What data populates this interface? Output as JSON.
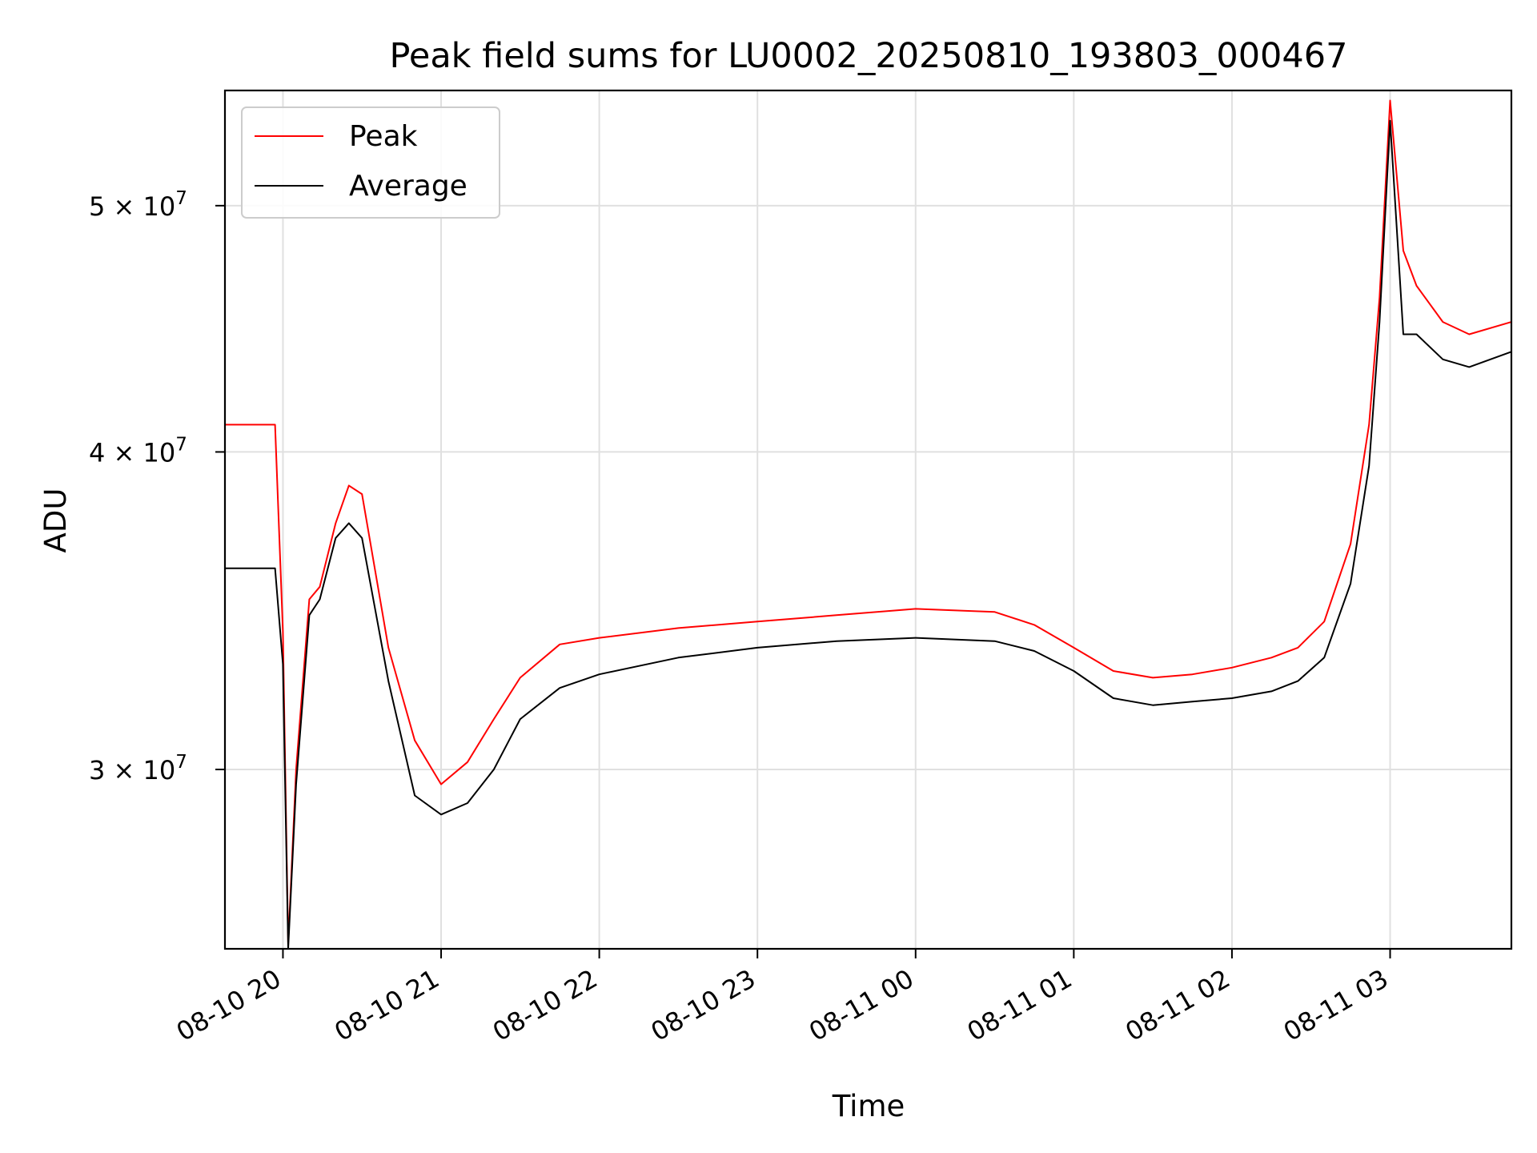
{
  "chart_data": {
    "type": "line",
    "title": "Peak field sums for LU0002_20250810_193803_000467",
    "xlabel": "Time",
    "ylabel": "ADU",
    "y_scale": "log",
    "ylim": [
      25500000,
      55500000
    ],
    "xlim": [
      "2025-08-10 19:38",
      "2025-08-11 03:46"
    ],
    "x_ticks": [
      {
        "t": "2025-08-10 20:00",
        "label": "08-10 20"
      },
      {
        "t": "2025-08-10 21:00",
        "label": "08-10 21"
      },
      {
        "t": "2025-08-10 22:00",
        "label": "08-10 22"
      },
      {
        "t": "2025-08-10 23:00",
        "label": "08-10 23"
      },
      {
        "t": "2025-08-11 00:00",
        "label": "08-11 00"
      },
      {
        "t": "2025-08-11 01:00",
        "label": "08-11 01"
      },
      {
        "t": "2025-08-11 02:00",
        "label": "08-11 02"
      },
      {
        "t": "2025-08-11 03:00",
        "label": "08-11 03"
      }
    ],
    "y_ticks": [
      {
        "value": 30000000,
        "mantissa": "3",
        "exponent": "7"
      },
      {
        "value": 40000000,
        "mantissa": "4",
        "exponent": "7"
      },
      {
        "value": 50000000,
        "mantissa": "5",
        "exponent": "7"
      }
    ],
    "grid": true,
    "legend_position": "top-left",
    "series": [
      {
        "name": "Peak",
        "color": "#ff0000",
        "x": [
          "2025-08-10 19:38",
          "2025-08-10 19:50",
          "2025-08-10 19:57",
          "2025-08-10 20:00",
          "2025-08-10 20:02",
          "2025-08-10 20:05",
          "2025-08-10 20:10",
          "2025-08-10 20:14",
          "2025-08-10 20:20",
          "2025-08-10 20:25",
          "2025-08-10 20:30",
          "2025-08-10 20:40",
          "2025-08-10 20:50",
          "2025-08-10 21:00",
          "2025-08-10 21:10",
          "2025-08-10 21:20",
          "2025-08-10 21:30",
          "2025-08-10 21:45",
          "2025-08-10 22:00",
          "2025-08-10 22:30",
          "2025-08-10 23:00",
          "2025-08-10 23:30",
          "2025-08-11 00:00",
          "2025-08-11 00:30",
          "2025-08-11 00:45",
          "2025-08-11 01:00",
          "2025-08-11 01:15",
          "2025-08-11 01:30",
          "2025-08-11 01:45",
          "2025-08-11 02:00",
          "2025-08-11 02:15",
          "2025-08-11 02:25",
          "2025-08-11 02:35",
          "2025-08-11 02:45",
          "2025-08-11 02:52",
          "2025-08-11 02:56",
          "2025-08-11 03:00",
          "2025-08-11 03:05",
          "2025-08-11 03:10",
          "2025-08-11 03:20",
          "2025-08-11 03:30",
          "2025-08-11 03:46"
        ],
        "values": [
          41000000,
          41000000,
          41000000,
          34000000,
          25600000,
          30000000,
          35000000,
          35400000,
          37500000,
          38800000,
          38500000,
          33500000,
          30800000,
          29600000,
          30200000,
          31400000,
          32600000,
          33600000,
          33800000,
          34100000,
          34300000,
          34500000,
          34700000,
          34600000,
          34200000,
          33500000,
          32800000,
          32600000,
          32700000,
          32900000,
          33200000,
          33500000,
          34300000,
          36800000,
          41000000,
          46000000,
          55000000,
          48000000,
          46500000,
          45000000,
          44500000,
          45000000
        ]
      },
      {
        "name": "Average",
        "color": "#000000",
        "x": [
          "2025-08-10 19:38",
          "2025-08-10 19:50",
          "2025-08-10 19:57",
          "2025-08-10 20:00",
          "2025-08-10 20:02",
          "2025-08-10 20:05",
          "2025-08-10 20:10",
          "2025-08-10 20:14",
          "2025-08-10 20:20",
          "2025-08-10 20:25",
          "2025-08-10 20:30",
          "2025-08-10 20:40",
          "2025-08-10 20:50",
          "2025-08-10 21:00",
          "2025-08-10 21:10",
          "2025-08-10 21:20",
          "2025-08-10 21:30",
          "2025-08-10 21:45",
          "2025-08-10 22:00",
          "2025-08-10 22:30",
          "2025-08-10 23:00",
          "2025-08-10 23:30",
          "2025-08-11 00:00",
          "2025-08-11 00:30",
          "2025-08-11 00:45",
          "2025-08-11 01:00",
          "2025-08-11 01:15",
          "2025-08-11 01:30",
          "2025-08-11 01:45",
          "2025-08-11 02:00",
          "2025-08-11 02:15",
          "2025-08-11 02:25",
          "2025-08-11 02:35",
          "2025-08-11 02:45",
          "2025-08-11 02:52",
          "2025-08-11 02:56",
          "2025-08-11 03:00",
          "2025-08-11 03:05",
          "2025-08-11 03:10",
          "2025-08-11 03:20",
          "2025-08-11 03:30",
          "2025-08-11 03:46"
        ],
        "values": [
          36000000,
          36000000,
          36000000,
          33000000,
          25500000,
          29600000,
          34500000,
          35000000,
          37000000,
          37500000,
          37000000,
          32500000,
          29300000,
          28800000,
          29100000,
          30000000,
          31400000,
          32300000,
          32700000,
          33200000,
          33500000,
          33700000,
          33800000,
          33700000,
          33400000,
          32800000,
          32000000,
          31800000,
          31900000,
          32000000,
          32200000,
          32500000,
          33200000,
          35500000,
          39500000,
          45000000,
          54000000,
          44500000,
          44500000,
          43500000,
          43200000,
          43800000
        ]
      }
    ]
  }
}
